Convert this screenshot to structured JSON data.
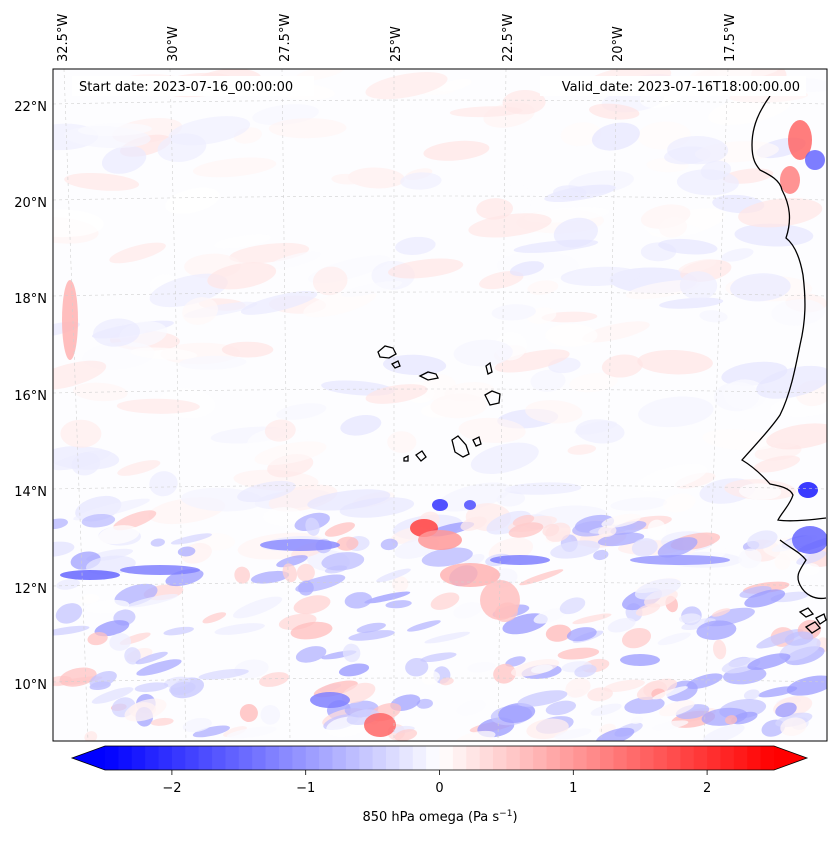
{
  "map": {
    "start_label": "Start date: 2023-07-16_00:00:00",
    "valid_label": "Valid_date: 2023-07-16T18:00:00.00",
    "lon_ticks": [
      "32.5°W",
      "30°W",
      "27.5°W",
      "25°W",
      "22.5°W",
      "20°W",
      "17.5°W"
    ],
    "lat_ticks": [
      "22°N",
      "20°N",
      "18°N",
      "16°N",
      "14°N",
      "12°N",
      "10°N"
    ],
    "colors": {
      "negative": "#0000ff",
      "zero": "#ffffff",
      "positive": "#ff0000",
      "coast": "#000000",
      "grid": "#c8c8c8"
    }
  },
  "colorbar": {
    "label_main": "850 hPa omega (Pa s",
    "label_exp": "−1",
    "label_close": ")",
    "ticks": [
      "−2",
      "−1",
      "0",
      "1",
      "2"
    ],
    "tick_values": [
      -2,
      -1,
      0,
      1,
      2
    ],
    "range": [
      -2.5,
      2.5
    ],
    "levels": 50
  }
}
